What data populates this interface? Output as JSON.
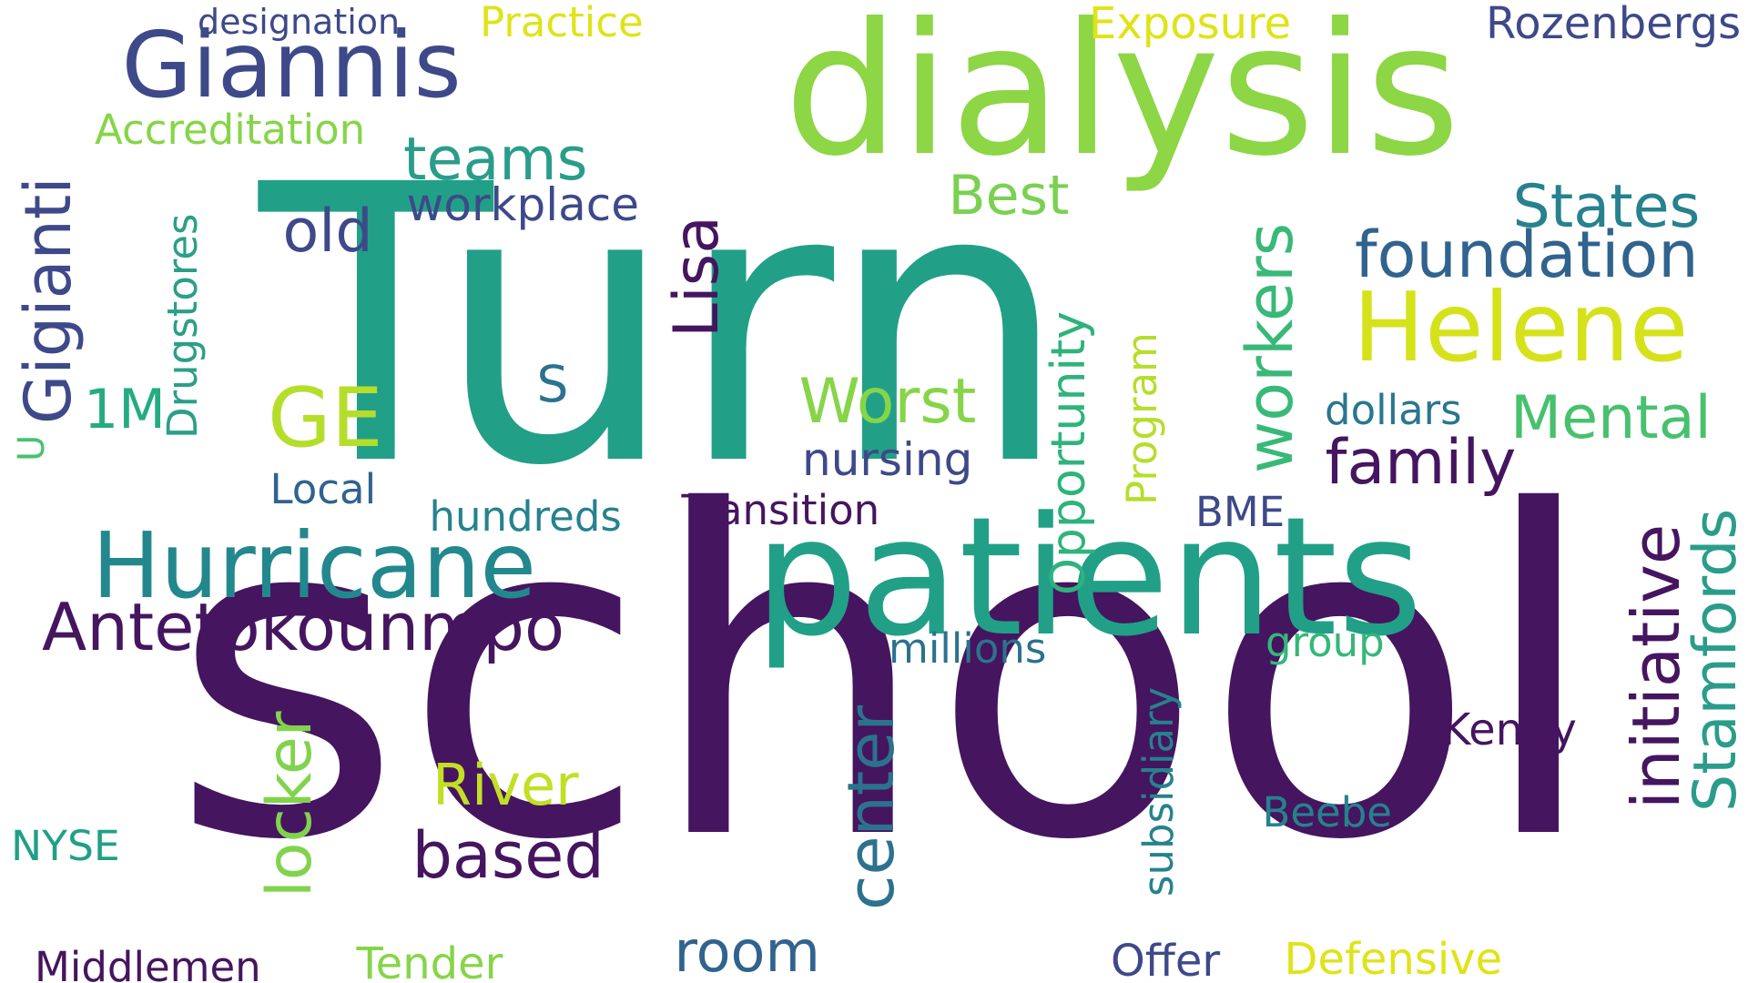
{
  "cloud": {
    "words": [
      {
        "text": "Turn",
        "color": "#21a087",
        "rotate": 0
      },
      {
        "text": "school",
        "color": "#45155f",
        "rotate": 0
      },
      {
        "text": "dialysis",
        "color": "#8dd645",
        "rotate": 0
      },
      {
        "text": "patients",
        "color": "#21a087",
        "rotate": 0
      },
      {
        "text": "Hurricane",
        "color": "#23888e",
        "rotate": 0
      },
      {
        "text": "Giannis",
        "color": "#3e4989",
        "rotate": 0
      },
      {
        "text": "Helene",
        "color": "#d5e21a",
        "rotate": 0
      },
      {
        "text": "Antetokounmpo",
        "color": "#45155f",
        "rotate": 0
      },
      {
        "text": "foundation",
        "color": "#30638e",
        "rotate": 0
      },
      {
        "text": "Gigianti",
        "color": "#3e4989",
        "rotate": -90
      },
      {
        "text": "GE",
        "color": "#b5de2b",
        "rotate": 0
      },
      {
        "text": "Worst",
        "color": "#86d549",
        "rotate": 0
      },
      {
        "text": "Mental",
        "color": "#48c16e",
        "rotate": 0
      },
      {
        "text": "States",
        "color": "#26828e",
        "rotate": 0
      },
      {
        "text": "family",
        "color": "#45155f",
        "rotate": 0
      },
      {
        "text": "initiative",
        "color": "#45155f",
        "rotate": -90
      },
      {
        "text": "Stamfords",
        "color": "#2a9d8a",
        "rotate": -90
      },
      {
        "text": "workers",
        "color": "#38b977",
        "rotate": -90
      },
      {
        "text": "center",
        "color": "#2c728e",
        "rotate": -90
      },
      {
        "text": "locker",
        "color": "#81d34d",
        "rotate": -90
      },
      {
        "text": "room",
        "color": "#30638e",
        "rotate": 0
      },
      {
        "text": "River",
        "color": "#c2df23",
        "rotate": 0
      },
      {
        "text": "based",
        "color": "#45155f",
        "rotate": 0
      },
      {
        "text": "teams",
        "color": "#2a9d8a",
        "rotate": 0
      },
      {
        "text": "old",
        "color": "#3e4989",
        "rotate": 0
      },
      {
        "text": "Best",
        "color": "#7ad151",
        "rotate": 0
      },
      {
        "text": "Lisa",
        "color": "#45155f",
        "rotate": -90
      },
      {
        "text": "1M",
        "color": "#25ab82",
        "rotate": 0
      },
      {
        "text": "S",
        "color": "#2c728e",
        "rotate": 0
      },
      {
        "text": "workplace",
        "color": "#3e4989",
        "rotate": 0
      },
      {
        "text": "Drugstores",
        "color": "#2c9f87",
        "rotate": -90
      },
      {
        "text": "Opportunity",
        "color": "#2eb37c",
        "rotate": -90
      },
      {
        "text": "Program",
        "color": "#b5de2b",
        "rotate": -90
      },
      {
        "text": "subsidiary",
        "color": "#26828e",
        "rotate": -90
      },
      {
        "text": "nursing",
        "color": "#3e4989",
        "rotate": 0
      },
      {
        "text": "dollars",
        "color": "#2a768e",
        "rotate": 0
      },
      {
        "text": "Transition",
        "color": "#45155f",
        "rotate": 0
      },
      {
        "text": "hundreds",
        "color": "#26828e",
        "rotate": 0
      },
      {
        "text": "Local",
        "color": "#30638e",
        "rotate": 0
      },
      {
        "text": "BME",
        "color": "#3e4989",
        "rotate": 0
      },
      {
        "text": "millions",
        "color": "#2c728e",
        "rotate": 0
      },
      {
        "text": "group",
        "color": "#35b779",
        "rotate": 0
      },
      {
        "text": "Kenny",
        "color": "#45155f",
        "rotate": 0
      },
      {
        "text": "Beebe",
        "color": "#26828e",
        "rotate": 0
      },
      {
        "text": "NYSE",
        "color": "#21a087",
        "rotate": 0
      },
      {
        "text": "Middlemen",
        "color": "#45155f",
        "rotate": 0
      },
      {
        "text": "Tender",
        "color": "#86d549",
        "rotate": 0
      },
      {
        "text": "Offer",
        "color": "#3e4989",
        "rotate": 0
      },
      {
        "text": "Defensive",
        "color": "#dfe318",
        "rotate": 0
      },
      {
        "text": "designation",
        "color": "#3e4989",
        "rotate": 0
      },
      {
        "text": "Practice",
        "color": "#dfe318",
        "rotate": 0
      },
      {
        "text": "Exposure",
        "color": "#dfe318",
        "rotate": 0
      },
      {
        "text": "Rozenbergs",
        "color": "#3e4989",
        "rotate": 0
      },
      {
        "text": "Accreditation",
        "color": "#86d549",
        "rotate": 0
      },
      {
        "text": "U",
        "color": "#48c16e",
        "rotate": -90
      }
    ]
  }
}
